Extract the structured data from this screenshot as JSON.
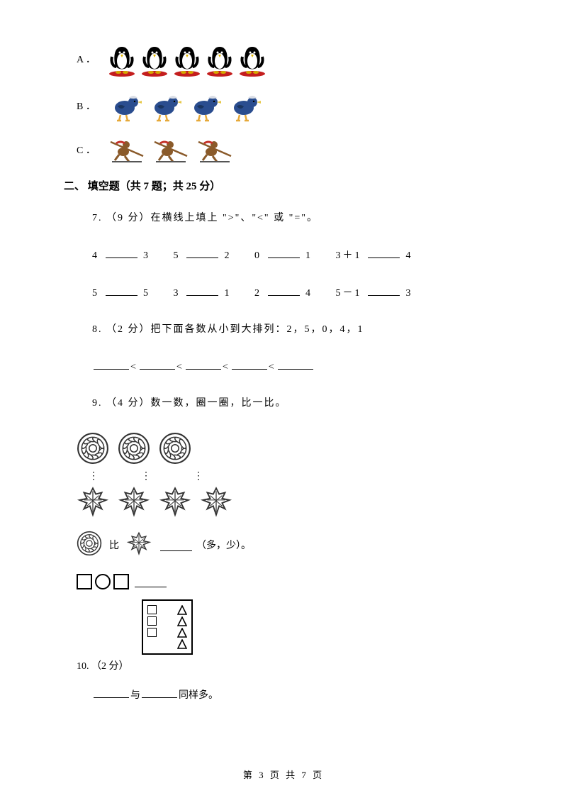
{
  "options": {
    "a_label": "A ．",
    "b_label": "B ．",
    "c_label": "C ．",
    "a_count": 5,
    "b_count": 4,
    "c_count": 3,
    "penguin_colors": {
      "body": "#000000",
      "belly": "#ffffff",
      "beak": "#e6b800",
      "feet": "#d4a800",
      "base": "#c41e1e"
    },
    "duck_colors": {
      "body": "#2a4d8f",
      "hat": "#d9dde5",
      "beak": "#e6c84a",
      "feet": "#e6a93a"
    },
    "skater_colors": {
      "body": "#8a5a2a",
      "scarf": "#c4332a",
      "pole": "#8a5a2a"
    }
  },
  "section2": {
    "title": "二、 填空题（共 7 题；共 25 分）"
  },
  "q7": {
    "header": "7.  （9 分）在横线上填上 \">\"、\"<\" 或 \"=\"。",
    "row1": {
      "c1a": "4",
      "c1b": "3",
      "c2a": "5",
      "c2b": "2",
      "c3a": "0",
      "c3b": "1",
      "c4a": "3＋1",
      "c4b": "4"
    },
    "row2": {
      "c1a": "5",
      "c1b": "5",
      "c2a": "3",
      "c2b": "1",
      "c3a": "2",
      "c3b": "4",
      "c4a": "5－1",
      "c4b": "3"
    }
  },
  "q8": {
    "header": "8.  （2 分）把下面各数从小到大排列：2，5，0，4，1",
    "lt": "<"
  },
  "q9": {
    "header": "9.  （4 分）数一数，圈一圈，比一比。",
    "flower_count": 3,
    "leaf_count": 4,
    "compare_suffix": "（多，少）。",
    "bi": "比",
    "flower_color": "#333333",
    "leaf_color": "#333333"
  },
  "q10": {
    "header": "10.  （2 分）",
    "grid": {
      "left_count": 3,
      "right_count": 4
    },
    "line": {
      "mid": "与",
      "end": "同样多。"
    }
  },
  "footer": {
    "text": "第 3 页 共 7 页"
  }
}
